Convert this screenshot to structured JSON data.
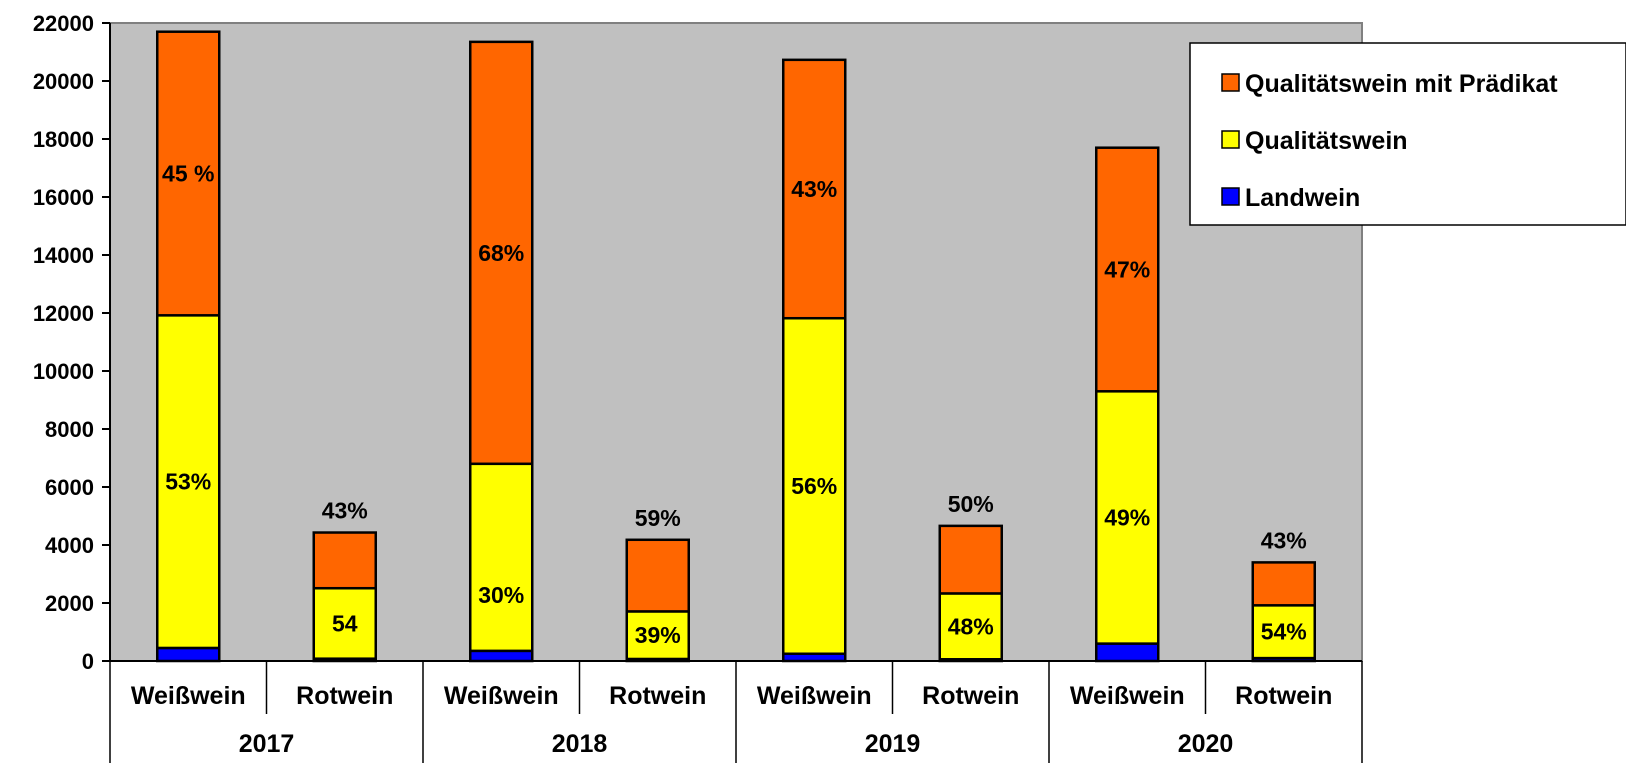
{
  "chart_data": {
    "type": "bar",
    "stacked": true,
    "groups": [
      "2017",
      "2018",
      "2019",
      "2020"
    ],
    "categories": [
      "Weißwein",
      "Rotwein",
      "Weißwein",
      "Rotwein",
      "Weißwein",
      "Rotwein",
      "Weißwein",
      "Rotwein"
    ],
    "series": [
      {
        "name": "Landwein",
        "color": "#0000ff",
        "values": [
          450,
          80,
          350,
          70,
          250,
          60,
          600,
          100
        ]
      },
      {
        "name": "Qualitätswein",
        "color": "#ffff00",
        "values": [
          11470,
          2430,
          6450,
          1640,
          11570,
          2270,
          8700,
          1820
        ]
      },
      {
        "name": "Qualitätswein mit Prädikat",
        "color": "#ff6600",
        "values": [
          9780,
          1920,
          14550,
          2470,
          8910,
          2330,
          8400,
          1480
        ]
      }
    ],
    "data_labels": [
      {
        "bar": 0,
        "series": 2,
        "text": "45 %",
        "pos": "mid"
      },
      {
        "bar": 0,
        "series": 1,
        "text": "53%",
        "pos": "mid"
      },
      {
        "bar": 1,
        "series": 2,
        "text": "43%",
        "pos": "above"
      },
      {
        "bar": 1,
        "series": 1,
        "text": "54",
        "pos": "mid"
      },
      {
        "bar": 2,
        "series": 2,
        "text": "68%",
        "pos": "mid"
      },
      {
        "bar": 2,
        "series": 1,
        "text": "30%",
        "pos": "low"
      },
      {
        "bar": 3,
        "series": 2,
        "text": "59%",
        "pos": "above"
      },
      {
        "bar": 3,
        "series": 1,
        "text": "39%",
        "pos": "mid"
      },
      {
        "bar": 4,
        "series": 2,
        "text": "43%",
        "pos": "mid"
      },
      {
        "bar": 4,
        "series": 1,
        "text": "56%",
        "pos": "mid"
      },
      {
        "bar": 5,
        "series": 2,
        "text": "50%",
        "pos": "above"
      },
      {
        "bar": 5,
        "series": 1,
        "text": "48%",
        "pos": "mid"
      },
      {
        "bar": 6,
        "series": 2,
        "text": "47%",
        "pos": "mid"
      },
      {
        "bar": 6,
        "series": 1,
        "text": "49%",
        "pos": "mid"
      },
      {
        "bar": 7,
        "series": 2,
        "text": "43%",
        "pos": "above"
      },
      {
        "bar": 7,
        "series": 1,
        "text": "54%",
        "pos": "mid"
      }
    ],
    "ylim": [
      0,
      22000
    ],
    "yticks": [
      0,
      2000,
      4000,
      6000,
      8000,
      10000,
      12000,
      14000,
      16000,
      18000,
      20000,
      22000
    ],
    "ytick_labels": [
      "0",
      "2000",
      "4000",
      "6000",
      "8000",
      "10000",
      "12000",
      "14000",
      "16000",
      "18000",
      "20000",
      "22000"
    ],
    "title": "",
    "xlabel": "",
    "ylabel": "",
    "grid": false,
    "plot_background": "#c0c0c0",
    "legend": {
      "position": "top-right",
      "order": [
        "Qualitätswein mit Prädikat",
        "Qualitätswein",
        "Landwein"
      ]
    }
  }
}
